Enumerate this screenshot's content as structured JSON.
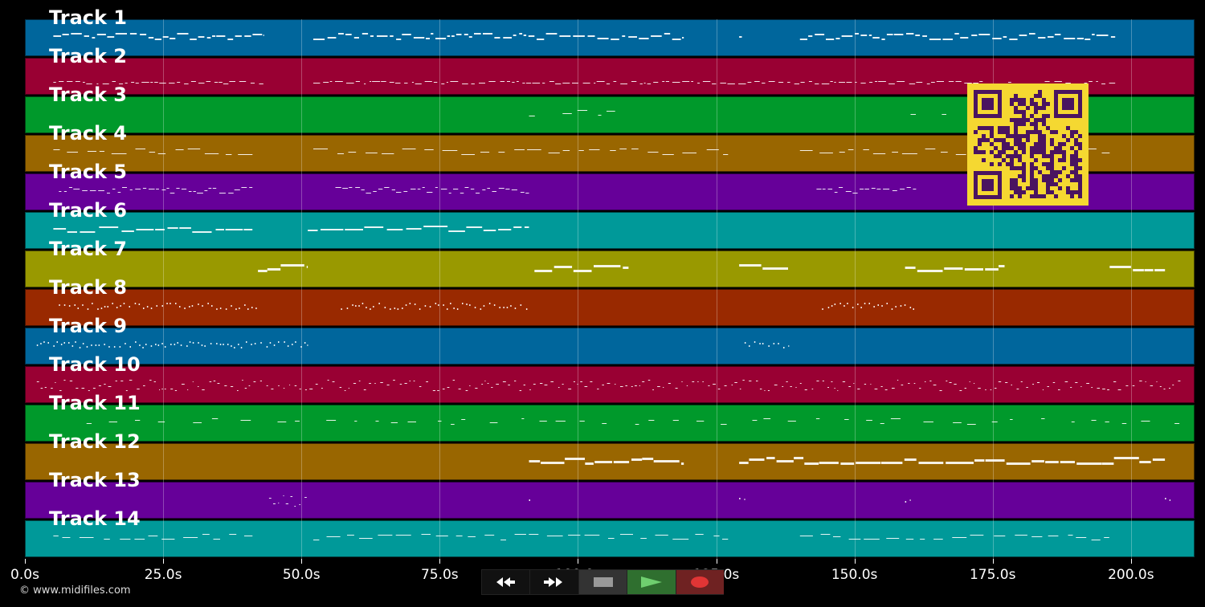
{
  "tracks": [
    {
      "label": "Track 1",
      "color": "#00669c"
    },
    {
      "label": "Track 2",
      "color": "#990033"
    },
    {
      "label": "Track 3",
      "color": "#00992b"
    },
    {
      "label": "Track 4",
      "color": "#996600"
    },
    {
      "label": "Track 5",
      "color": "#660099"
    },
    {
      "label": "Track 6",
      "color": "#009999"
    },
    {
      "label": "Track 7",
      "color": "#999900"
    },
    {
      "label": "Track 8",
      "color": "#992900"
    },
    {
      "label": "Track 9",
      "color": "#00669c"
    },
    {
      "label": "Track 10",
      "color": "#990033"
    },
    {
      "label": "Track 11",
      "color": "#00992b"
    },
    {
      "label": "Track 12",
      "color": "#996600"
    },
    {
      "label": "Track 13",
      "color": "#660099"
    },
    {
      "label": "Track 14",
      "color": "#009999"
    }
  ],
  "timeline": {
    "max_seconds": 211.5,
    "ticks": [
      {
        "value": 0,
        "label": "0.0s"
      },
      {
        "value": 25,
        "label": "25.0s"
      },
      {
        "value": 50,
        "label": "50.0s"
      },
      {
        "value": 75,
        "label": "75.0s"
      },
      {
        "value": 100,
        "label": "100.0s"
      },
      {
        "value": 125,
        "label": "125.0s"
      },
      {
        "value": 150,
        "label": "150.0s"
      },
      {
        "value": 175,
        "label": "175.0s"
      },
      {
        "value": 200,
        "label": "200.0s"
      }
    ]
  },
  "controls": {
    "rewind": {
      "icon": "rewind-icon"
    },
    "fast_forward": {
      "icon": "fast-forward-icon"
    },
    "stop": {
      "icon": "stop-icon"
    },
    "play": {
      "icon": "play-icon",
      "color": "#2f6f2f"
    },
    "record": {
      "icon": "record-icon",
      "color": "#6f2222"
    }
  },
  "qr_color": "#f5d831",
  "copyright": "© www.midifiles.com"
}
